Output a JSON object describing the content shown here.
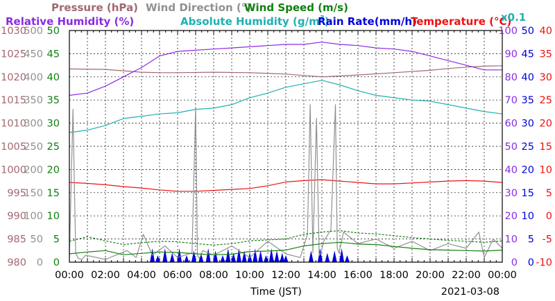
{
  "chart_data": {
    "type": "line",
    "date": "2021-03-08",
    "xlabel": "Time (JST)",
    "x_ticks": [
      "00:00",
      "02:00",
      "04:00",
      "06:00",
      "08:00",
      "10:00",
      "12:00",
      "14:00",
      "16:00",
      "18:00",
      "20:00",
      "22:00",
      "00:00"
    ],
    "xlim_hours": [
      0,
      24
    ],
    "grid": true,
    "legend": [
      {
        "text": "Pressure (hPa)",
        "color": "#a06870"
      },
      {
        "text": "Wind Direction (°)",
        "color": "#909090"
      },
      {
        "text": "Wind Speed (m/s)",
        "color": "#108010"
      },
      {
        "text": "Relative Humidity (%)",
        "color": "#8a2be2"
      },
      {
        "text": "Absolute Humidity (g/m",
        "sup": "3",
        "tail": ")",
        "color": "#20b0b0"
      },
      {
        "text": "Rain Rate(mm/h)",
        "color": "#0000dd"
      },
      {
        "text": "Temperature (°C)",
        "color": "#ee1111"
      },
      {
        "text": "x0.1",
        "color": "#20b0b0"
      }
    ],
    "axes": {
      "pressure": {
        "color": "#a06870",
        "ticks": [
          "1030",
          "1025",
          "1020",
          "1015",
          "1010",
          "1005",
          "1000",
          "995",
          "990",
          "985",
          "980"
        ],
        "ylim": [
          980,
          1030
        ]
      },
      "wind_direction": {
        "color": "#909090",
        "ticks": [
          "500",
          "450",
          "400",
          "350",
          "300",
          "250",
          "200",
          "150",
          "100",
          "50",
          "0"
        ],
        "ylim": [
          0,
          500
        ]
      },
      "wind_speed": {
        "color": "#108010",
        "ticks": [
          "50",
          "45",
          "40",
          "35",
          "30",
          "25",
          "20",
          "15",
          "10",
          "5",
          "0"
        ],
        "ylim": [
          0,
          50
        ]
      },
      "relative_humidity": {
        "color": "#8a2be2",
        "ticks": [
          "100",
          "90",
          "80",
          "70",
          "60",
          "50",
          "40",
          "30",
          "20",
          "10",
          "0"
        ],
        "ylim": [
          0,
          100
        ]
      },
      "rain_rate": {
        "color": "#0000dd",
        "ticks": [
          "50",
          "45",
          "40",
          "35",
          "30",
          "25",
          "20",
          "15",
          "10",
          "5",
          "0"
        ],
        "ylim": [
          0,
          50
        ]
      },
      "temperature": {
        "color": "#ee1111",
        "ticks": [
          "40",
          "35",
          "30",
          "25",
          "20",
          "15",
          "10",
          "5",
          "0",
          "-5",
          "-10"
        ],
        "ylim": [
          -10,
          40
        ]
      }
    },
    "series": [
      {
        "name": "Pressure (hPa)",
        "axis": "pressure",
        "color": "#a06870",
        "x": [
          0,
          2,
          3,
          4,
          5,
          6,
          8,
          10,
          12,
          13,
          14,
          15,
          16,
          18,
          20,
          21,
          22,
          23,
          24
        ],
        "y": [
          1021.7,
          1021.6,
          1021.3,
          1021.0,
          1020.9,
          1020.9,
          1021.0,
          1020.9,
          1020.6,
          1020.3,
          1020.0,
          1020.2,
          1020.4,
          1020.9,
          1021.4,
          1021.8,
          1022.1,
          1022.3,
          1022.4
        ]
      },
      {
        "name": "Relative Humidity (%)",
        "axis": "relative_humidity",
        "color": "#8a2be2",
        "x": [
          0,
          1,
          2,
          3,
          4,
          5,
          6,
          7,
          8,
          9,
          10,
          11,
          12,
          13,
          14,
          15,
          16,
          17,
          18,
          19,
          20,
          21,
          22,
          23,
          24
        ],
        "y": [
          72,
          73,
          76,
          80,
          84,
          89,
          91,
          91.5,
          92,
          92.5,
          93,
          93.5,
          94,
          94,
          95,
          94,
          93.5,
          92.5,
          92,
          91,
          89,
          87,
          85,
          83,
          83
        ]
      },
      {
        "name": "Absolute Humidity x0.1 (g/m3)",
        "axis": "relative_humidity",
        "color": "#20b0b0",
        "x": [
          0,
          1,
          2,
          3,
          4,
          5,
          6,
          7,
          8,
          9,
          10,
          11,
          12,
          13,
          14,
          15,
          16,
          17,
          18,
          19,
          20,
          21,
          22,
          23,
          24
        ],
        "y": [
          56,
          57,
          59,
          62,
          63,
          64,
          64.5,
          66,
          66.5,
          68,
          71,
          73,
          75.5,
          77,
          78.5,
          76.5,
          74,
          72,
          71,
          70,
          69.5,
          68,
          66.5,
          65,
          64
        ]
      },
      {
        "name": "Temperature (°C)",
        "axis": "temperature",
        "color": "#ee1111",
        "x": [
          0,
          1,
          2,
          3,
          4,
          5,
          6,
          7,
          8,
          9,
          10,
          11,
          12,
          13,
          14,
          15,
          16,
          17,
          18,
          19,
          20,
          21,
          22,
          23,
          24
        ],
        "y": [
          7.2,
          7.0,
          6.7,
          6.3,
          6.0,
          5.6,
          5.3,
          5.3,
          5.5,
          5.7,
          5.9,
          6.5,
          7.3,
          7.6,
          7.8,
          7.5,
          7.2,
          6.9,
          6.9,
          7.1,
          7.3,
          7.5,
          7.6,
          7.5,
          7.2
        ]
      },
      {
        "name": "Wind Direction (°)",
        "axis": "wind_direction",
        "color": "#909090",
        "x": [
          0,
          0.2,
          0.35,
          0.5,
          0.7,
          0.9,
          2,
          3.2,
          3.7,
          4.1,
          4.6,
          5.3,
          6,
          6.8,
          7.0,
          7.1,
          7.2,
          7.4,
          8,
          9,
          10,
          11,
          12,
          12.8,
          13.2,
          13.35,
          13.5,
          13.7,
          13.85,
          13.95,
          14.1,
          14.5,
          14.75,
          14.85,
          14.95,
          15.2,
          16,
          17,
          18,
          19,
          20,
          21,
          22,
          22.7,
          23,
          23.5,
          24
        ],
        "y": [
          10,
          330,
          20,
          8,
          6,
          15,
          6,
          25,
          10,
          60,
          15,
          35,
          10,
          20,
          335,
          15,
          8,
          25,
          15,
          35,
          10,
          45,
          18,
          10,
          60,
          340,
          20,
          310,
          15,
          20,
          45,
          70,
          340,
          30,
          20,
          65,
          40,
          50,
          30,
          45,
          25,
          40,
          30,
          65,
          10,
          50,
          30
        ]
      },
      {
        "name": "Wind Speed (m/s)",
        "axis": "wind_speed",
        "color": "#108010",
        "x": [
          0,
          1,
          2,
          3,
          4,
          5,
          6,
          7,
          8,
          9,
          10,
          11,
          12,
          13,
          14,
          15,
          16,
          17,
          18,
          19,
          20,
          21,
          22,
          23,
          24
        ],
        "y": [
          1.8,
          2.2,
          2.5,
          1.6,
          1.9,
          2.2,
          2.1,
          1.8,
          1.6,
          1.7,
          2.3,
          2.4,
          2.6,
          3.5,
          4.0,
          4.3,
          3.9,
          3.8,
          3.4,
          3.0,
          2.7,
          2.6,
          2.5,
          2.4,
          2.6
        ]
      },
      {
        "name": "Wind Speed gust (m/s)",
        "axis": "wind_speed",
        "color": "#108010",
        "dashed": true,
        "x": [
          0,
          1,
          2,
          3,
          4,
          5,
          6,
          7,
          8,
          9,
          10,
          11,
          12,
          13,
          14,
          15,
          16,
          17,
          18,
          19,
          20,
          21,
          22,
          23,
          24
        ],
        "y": [
          4.5,
          5.5,
          4.6,
          3.8,
          4.2,
          4.5,
          4.4,
          4.0,
          3.7,
          4.0,
          4.6,
          4.8,
          5.0,
          6.0,
          6.5,
          6.8,
          6.3,
          6.1,
          5.7,
          5.3,
          5.0,
          4.7,
          4.5,
          4.3,
          4.6
        ]
      }
    ],
    "rain_rate": {
      "name": "Rain Rate(mm/h)",
      "axis": "rain_rate",
      "color": "#0000dd",
      "x": [
        4.6,
        4.9,
        5.3,
        5.7,
        6.1,
        6.5,
        6.9,
        7.3,
        7.7,
        8.1,
        8.5,
        8.8,
        9.1,
        9.4,
        9.7,
        10.0,
        10.3,
        10.6,
        10.9,
        11.2,
        11.5,
        11.8,
        12.0,
        13.4,
        13.9,
        14.3,
        14.7,
        15.1,
        15.4
      ],
      "y": [
        3,
        1.5,
        3,
        2,
        3,
        1.5,
        2.5,
        2,
        3,
        2.5,
        1.5,
        3,
        2,
        3,
        2.5,
        2,
        3,
        2.5,
        1.5,
        3,
        2.5,
        2,
        1.5,
        2.5,
        3,
        2,
        2.5,
        3,
        1.5
      ]
    }
  }
}
